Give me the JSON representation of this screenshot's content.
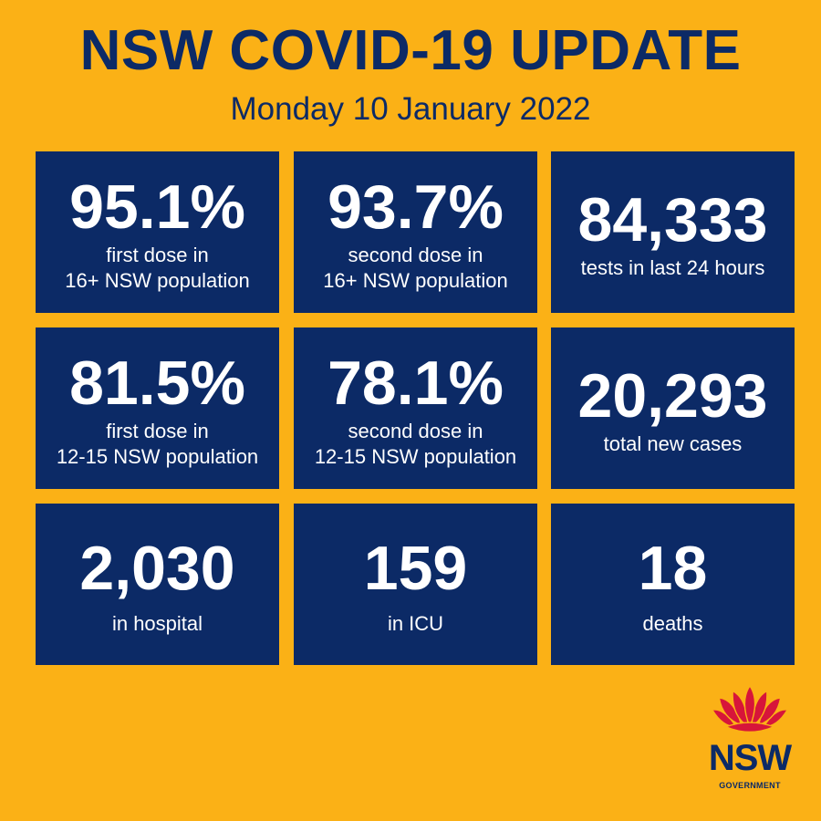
{
  "header": {
    "title": "NSW COVID-19 UPDATE",
    "date": "Monday 10 January 2022"
  },
  "tiles": [
    {
      "value": "95.1%",
      "label": "first dose in\n16+ NSW population"
    },
    {
      "value": "93.7%",
      "label": "second dose in\n16+ NSW population"
    },
    {
      "value": "84,333",
      "label": "tests in last 24 hours"
    },
    {
      "value": "81.5%",
      "label": "first dose in\n12-15 NSW population"
    },
    {
      "value": "78.1%",
      "label": "second dose in\n12-15 NSW population"
    },
    {
      "value": "20,293",
      "label": "total new cases"
    },
    {
      "value": "2,030",
      "label": "in hospital"
    },
    {
      "value": "159",
      "label": "in ICU"
    },
    {
      "value": "18",
      "label": "deaths"
    }
  ],
  "logo": {
    "name": "NSW",
    "sub": "GOVERNMENT"
  },
  "colors": {
    "background": "#FBB116",
    "navy": "#0C2A66",
    "waratah_red": "#D7153A"
  }
}
